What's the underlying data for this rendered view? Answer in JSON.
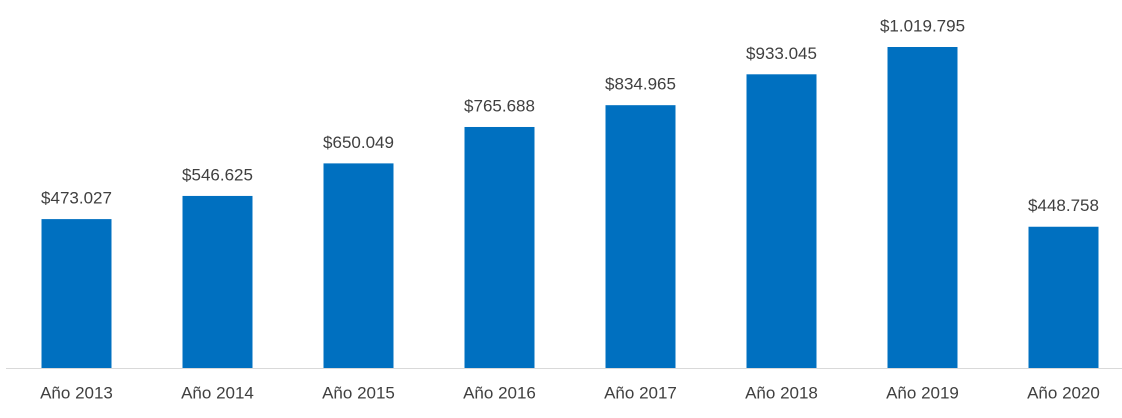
{
  "chart_data": {
    "type": "bar",
    "categories": [
      "Año 2013",
      "Año 2014",
      "Año 2015",
      "Año 2016",
      "Año 2017",
      "Año 2018",
      "Año 2019",
      "Año 2020"
    ],
    "values": [
      473027,
      546625,
      650049,
      765688,
      834965,
      933045,
      1019795,
      448758
    ],
    "value_labels": [
      "$473.027",
      "$546.625",
      "$650.049",
      "$765.688",
      "$834.965",
      "$933.045",
      "$1.019.795",
      "$448.758"
    ],
    "color": "#0070c0"
  }
}
